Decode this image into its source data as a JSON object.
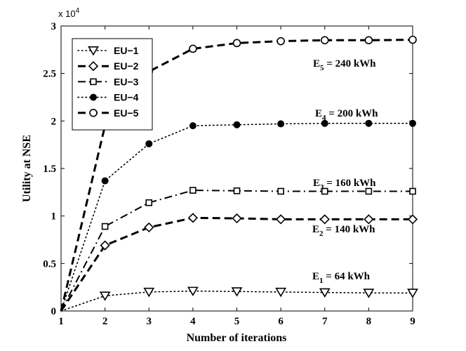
{
  "chart_data": {
    "type": "line",
    "xlabel": "Number of iterations",
    "ylabel": "Utility at NSE",
    "y_multiplier": {
      "base": "x 10",
      "exponent": "4"
    },
    "x": [
      1,
      2,
      3,
      4,
      5,
      6,
      7,
      8,
      9
    ],
    "xlim": [
      1,
      9
    ],
    "ylim": [
      0,
      3
    ],
    "y_ticks": [
      "0",
      "0.5",
      "1",
      "1.5",
      "2",
      "2.5",
      "3"
    ],
    "x_ticks": [
      "1",
      "2",
      "3",
      "4",
      "5",
      "6",
      "7",
      "8",
      "9"
    ],
    "legend_position": "top-left",
    "series": [
      {
        "name": "EU−1",
        "style": "dotted",
        "marker": "triangle-down",
        "values": [
          0,
          0.16,
          0.2,
          0.21,
          0.205,
          0.2,
          0.195,
          0.19,
          0.19
        ]
      },
      {
        "name": "EU−2",
        "style": "dashed",
        "marker": "diamond",
        "values": [
          0,
          0.69,
          0.88,
          0.98,
          0.975,
          0.965,
          0.965,
          0.965,
          0.965
        ]
      },
      {
        "name": "EU−3",
        "style": "dash-dot",
        "marker": "square",
        "values": [
          0,
          0.89,
          1.14,
          1.27,
          1.265,
          1.26,
          1.26,
          1.26,
          1.26
        ]
      },
      {
        "name": "EU−4",
        "style": "dotted",
        "marker": "filled-circle",
        "values": [
          0,
          1.37,
          1.76,
          1.95,
          1.96,
          1.97,
          1.975,
          1.975,
          1.975
        ]
      },
      {
        "name": "EU−5",
        "style": "dashed",
        "marker": "circle",
        "values": [
          0,
          1.95,
          2.52,
          2.76,
          2.82,
          2.84,
          2.85,
          2.85,
          2.855
        ]
      }
    ],
    "annotations": [
      {
        "main": "E",
        "sub": "5",
        "rest": " = 240 kWh"
      },
      {
        "main": "E",
        "sub": "4",
        "rest": " = 200 kWh"
      },
      {
        "main": "E",
        "sub": "3",
        "rest": " = 160 kWh"
      },
      {
        "main": "E",
        "sub": "2",
        "rest": " = 140 kWh"
      },
      {
        "main": "E",
        "sub": "1",
        "rest": " = 64 kWh"
      }
    ]
  }
}
